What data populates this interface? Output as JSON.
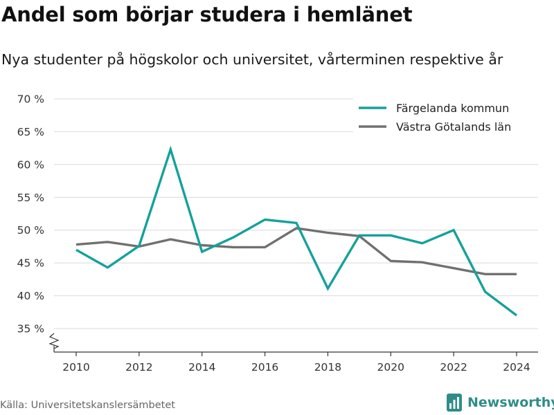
{
  "header": {
    "title": "Andel som börjar studera i hemlänet",
    "subtitle": "Nya studenter på högskolor och universitet, vårterminen respektive år"
  },
  "footer": {
    "source": "Källa: Universitetskanslersämbetet",
    "brand_name": "Newsworthy",
    "brand_color": "#2f8d88"
  },
  "chart_data": {
    "type": "line",
    "x": [
      2010,
      2011,
      2012,
      2013,
      2014,
      2015,
      2016,
      2017,
      2018,
      2019,
      2020,
      2021,
      2022,
      2023,
      2024
    ],
    "series": [
      {
        "name": "Färgelanda kommun",
        "color": "#14a19a",
        "values": [
          47.0,
          44.3,
          47.6,
          62.3,
          46.7,
          48.9,
          51.6,
          51.1,
          41.1,
          49.2,
          49.2,
          48.0,
          50.0,
          40.6,
          37.0
        ]
      },
      {
        "name": "Västra Götalands län",
        "color": "#707070",
        "values": [
          47.8,
          48.2,
          47.5,
          48.6,
          47.7,
          47.4,
          47.4,
          50.3,
          49.6,
          49.1,
          45.3,
          45.1,
          44.2,
          43.3,
          43.3
        ]
      }
    ],
    "yticks": [
      35,
      40,
      45,
      50,
      55,
      60,
      65,
      70
    ],
    "ytick_labels": [
      "35 %",
      "40 %",
      "45 %",
      "50 %",
      "55 %",
      "60 %",
      "65 %",
      "70 %"
    ],
    "xticks": [
      2010,
      2012,
      2014,
      2016,
      2018,
      2020,
      2022,
      2024
    ],
    "xtick_labels": [
      "2010",
      "2012",
      "2014",
      "2016",
      "2018",
      "2020",
      "2022",
      "2024"
    ],
    "ylim": [
      35,
      70
    ],
    "xlim": [
      2010,
      2024
    ],
    "y_axis_break": true,
    "grid": true,
    "legend_position": "top-right",
    "xlabel": "",
    "ylabel": ""
  }
}
